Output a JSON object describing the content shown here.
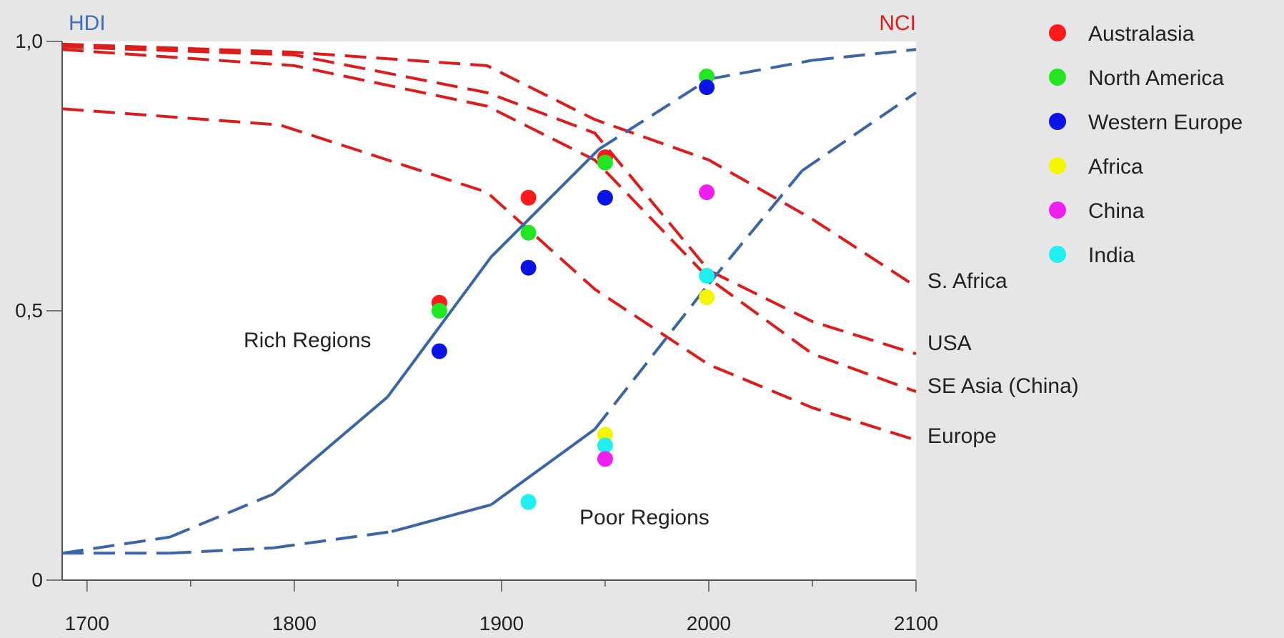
{
  "chart_data": {
    "type": "line",
    "left_axis_title": "HDI",
    "right_axis_title": "NCI",
    "xlim": [
      1688,
      2100
    ],
    "ylim": [
      0,
      1
    ],
    "x_ticks": [
      1700,
      1800,
      1900,
      2000,
      2100
    ],
    "x_tick_labels": [
      "1700",
      "1800",
      "1900",
      "2000",
      "2100"
    ],
    "y_ticks": [
      0,
      0.5,
      1
    ],
    "y_tick_labels": [
      "0",
      "0,5",
      "1,0"
    ],
    "colors": {
      "hdi": "#3a66a8",
      "nci": "#dd1c1c",
      "left_title": "#3f6fc0",
      "right_title": "#e21a1a"
    },
    "legend_position": "top-right",
    "legend": [
      {
        "name": "Australasia",
        "color": "#ff1a1a"
      },
      {
        "name": "North America",
        "color": "#22e622"
      },
      {
        "name": "Western Europe",
        "color": "#0a14e6"
      },
      {
        "name": "Africa",
        "color": "#f5f500"
      },
      {
        "name": "China",
        "color": "#f01ef0"
      },
      {
        "name": "India",
        "color": "#1ef0f0"
      }
    ],
    "hdi_series": [
      {
        "label": "Rich Regions",
        "points": [
          [
            1688,
            0.05,
            "d"
          ],
          [
            1740,
            0.08,
            "d"
          ],
          [
            1790,
            0.16,
            "d"
          ],
          [
            1845,
            0.34,
            "s"
          ],
          [
            1895,
            0.6,
            "s"
          ],
          [
            1947,
            0.8,
            "s"
          ],
          [
            2000,
            0.93,
            "d"
          ],
          [
            2050,
            0.965,
            "d"
          ],
          [
            2100,
            0.985,
            "d"
          ]
        ]
      },
      {
        "label": "Poor Regions",
        "points": [
          [
            1688,
            0.05,
            "d"
          ],
          [
            1740,
            0.05,
            "d"
          ],
          [
            1790,
            0.06,
            "d"
          ],
          [
            1847,
            0.09,
            "d"
          ],
          [
            1895,
            0.14,
            "s"
          ],
          [
            1945,
            0.28,
            "s"
          ],
          [
            2000,
            0.55,
            "d"
          ],
          [
            2045,
            0.76,
            "d"
          ],
          [
            2100,
            0.905,
            "d"
          ]
        ]
      }
    ],
    "nci_series": [
      {
        "label": "S. Africa",
        "points": [
          [
            1688,
            0.995
          ],
          [
            1800,
            0.98
          ],
          [
            1893,
            0.955
          ],
          [
            1945,
            0.855
          ],
          [
            2000,
            0.78
          ],
          [
            2050,
            0.67
          ],
          [
            2100,
            0.545
          ]
        ]
      },
      {
        "label": "USA",
        "points": [
          [
            1688,
            0.99
          ],
          [
            1800,
            0.975
          ],
          [
            1893,
            0.905
          ],
          [
            1945,
            0.83
          ],
          [
            2000,
            0.575
          ],
          [
            2050,
            0.48
          ],
          [
            2100,
            0.42
          ]
        ]
      },
      {
        "label": "SE Asia (China)",
        "points": [
          [
            1688,
            0.985
          ],
          [
            1800,
            0.955
          ],
          [
            1893,
            0.88
          ],
          [
            1945,
            0.78
          ],
          [
            2000,
            0.56
          ],
          [
            2050,
            0.42
          ],
          [
            2100,
            0.35
          ]
        ]
      },
      {
        "label": "Europe",
        "points": [
          [
            1688,
            0.875
          ],
          [
            1793,
            0.845
          ],
          [
            1893,
            0.72
          ],
          [
            1945,
            0.54
          ],
          [
            2000,
            0.4
          ],
          [
            2050,
            0.32
          ],
          [
            2100,
            0.26
          ]
        ]
      }
    ],
    "points": [
      {
        "x": 1870,
        "y": 0.515,
        "region": "Australasia"
      },
      {
        "x": 1870,
        "y": 0.5,
        "region": "North America"
      },
      {
        "x": 1870,
        "y": 0.425,
        "region": "Western Europe"
      },
      {
        "x": 1913,
        "y": 0.71,
        "region": "Australasia"
      },
      {
        "x": 1913,
        "y": 0.645,
        "region": "North America"
      },
      {
        "x": 1913,
        "y": 0.58,
        "region": "Western Europe"
      },
      {
        "x": 1913,
        "y": 0.145,
        "region": "India"
      },
      {
        "x": 1950,
        "y": 0.785,
        "region": "Australasia"
      },
      {
        "x": 1950,
        "y": 0.775,
        "region": "North America"
      },
      {
        "x": 1950,
        "y": 0.71,
        "region": "Western Europe"
      },
      {
        "x": 1950,
        "y": 0.27,
        "region": "Africa"
      },
      {
        "x": 1950,
        "y": 0.25,
        "region": "India"
      },
      {
        "x": 1950,
        "y": 0.225,
        "region": "China"
      },
      {
        "x": 1999,
        "y": 0.935,
        "region": "North America"
      },
      {
        "x": 1999,
        "y": 0.915,
        "region": "Western Europe"
      },
      {
        "x": 1999,
        "y": 0.72,
        "region": "China"
      },
      {
        "x": 1999,
        "y": 0.565,
        "region": "India"
      },
      {
        "x": 1999,
        "y": 0.525,
        "region": "Africa"
      }
    ]
  }
}
